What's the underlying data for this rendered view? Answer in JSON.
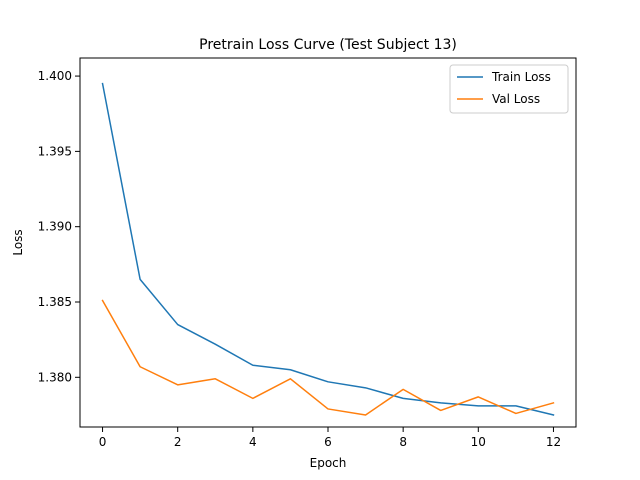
{
  "chart_data": {
    "type": "line",
    "title": "Pretrain Loss Curve (Test Subject 13)",
    "xlabel": "Epoch",
    "ylabel": "Loss",
    "xlim": [
      -0.6,
      12.6
    ],
    "ylim": [
      1.3767,
      1.4012
    ],
    "xticks": [
      0,
      2,
      4,
      6,
      8,
      10,
      12
    ],
    "xtick_labels": [
      "0",
      "2",
      "4",
      "6",
      "8",
      "10",
      "12"
    ],
    "yticks": [
      1.38,
      1.385,
      1.39,
      1.395,
      1.4
    ],
    "ytick_labels": [
      "1.380",
      "1.385",
      "1.390",
      "1.395",
      "1.400"
    ],
    "grid": false,
    "legend_position": "top-right",
    "x": [
      0,
      1,
      2,
      3,
      4,
      5,
      6,
      7,
      8,
      9,
      10,
      11,
      12
    ],
    "series": [
      {
        "name": "Train Loss",
        "color": "#1f77b4",
        "values": [
          1.3995,
          1.3865,
          1.3835,
          1.3822,
          1.3808,
          1.3805,
          1.3797,
          1.3793,
          1.3786,
          1.3783,
          1.3781,
          1.3781,
          1.3775
        ]
      },
      {
        "name": "Val Loss",
        "color": "#ff7f0e",
        "values": [
          1.3851,
          1.3807,
          1.3795,
          1.3799,
          1.3786,
          1.3799,
          1.3779,
          1.3775,
          1.3792,
          1.3778,
          1.3787,
          1.3776,
          1.3783
        ]
      }
    ]
  }
}
